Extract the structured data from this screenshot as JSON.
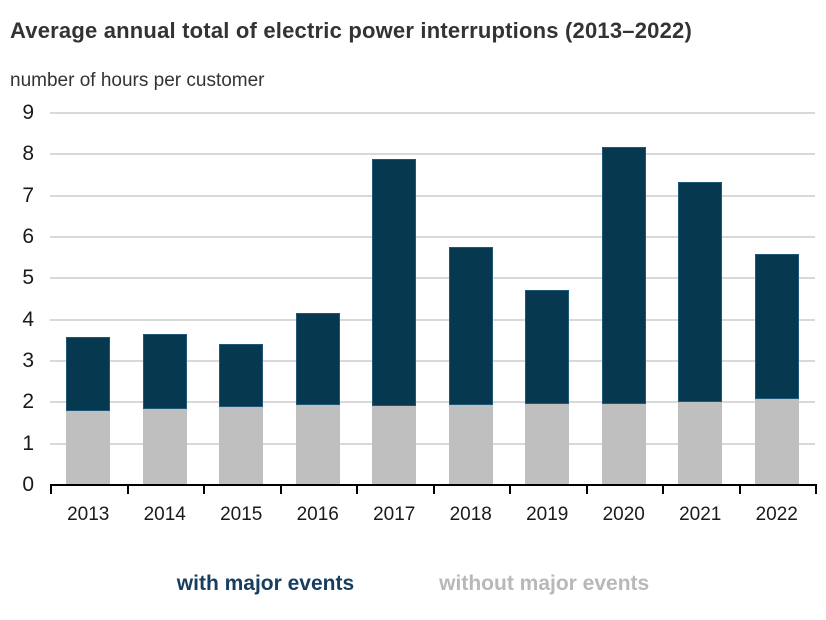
{
  "header": {
    "title": "Average annual total of electric power interruptions (2013–2022)",
    "subtitle": "number of hours per customer"
  },
  "chart_data": {
    "type": "bar",
    "stacked": true,
    "title": "Average annual total of electric power interruptions (2013–2022)",
    "ylabel": "number of hours per customer",
    "categories": [
      "2013",
      "2014",
      "2015",
      "2016",
      "2017",
      "2018",
      "2019",
      "2020",
      "2021",
      "2022"
    ],
    "series": [
      {
        "name": "without major events",
        "color": "#bfbfbf",
        "values": [
          1.78,
          1.83,
          1.89,
          1.94,
          1.92,
          1.93,
          1.95,
          1.97,
          2.01,
          2.07
        ]
      },
      {
        "name": "with major events",
        "color": "#06384f",
        "note": "values are total bar heights; navy segment is drawn stacked above the without-major-events segment",
        "values": [
          3.58,
          3.65,
          3.41,
          4.15,
          7.89,
          5.77,
          4.73,
          8.18,
          7.32,
          5.58
        ]
      }
    ],
    "ylim": [
      0,
      9
    ],
    "yticks": [
      0,
      1,
      2,
      3,
      4,
      5,
      6,
      7,
      8,
      9
    ],
    "grid": true,
    "gridline_color": "#d9d9d9",
    "axis_color": "#000000",
    "legend_position": "bottom"
  },
  "legend": {
    "items": [
      {
        "label": "with major events",
        "color": "#173e61"
      },
      {
        "label": "without major events",
        "color": "#b8b8b8"
      }
    ]
  }
}
